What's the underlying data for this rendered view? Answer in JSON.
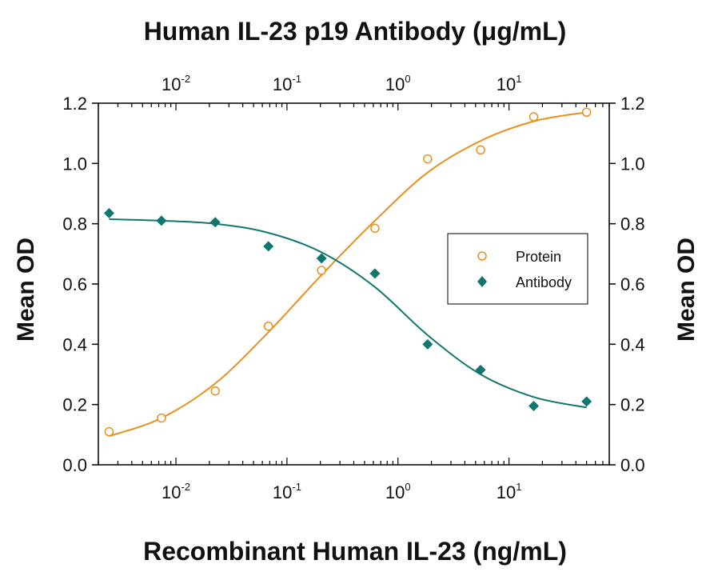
{
  "chart_data": {
    "type": "scatter",
    "title_top": "Human IL-23 p19 Antibody (μg/mL)",
    "xlabel": "Recombinant Human IL-23 (ng/mL)",
    "ylabel_left": "Mean OD",
    "ylabel_right": "Mean OD",
    "x_scale": "log",
    "xlim": [
      0.002,
      80
    ],
    "ylim": [
      0,
      1.2
    ],
    "y_ticks": [
      "0.0",
      "0.2",
      "0.4",
      "0.6",
      "0.8",
      "1.0",
      "1.2"
    ],
    "x_tick_labels": [
      {
        "base": "10",
        "exp": "-2",
        "value": 0.01
      },
      {
        "base": "10",
        "exp": "-1",
        "value": 0.1
      },
      {
        "base": "10",
        "exp": "0",
        "value": 1
      },
      {
        "base": "10",
        "exp": "1",
        "value": 10
      }
    ],
    "grid": false,
    "legend_position": "right",
    "series": [
      {
        "name": "Protein",
        "marker": "open-circle",
        "color": "#e8901e",
        "x": [
          0.0025,
          0.0074,
          0.0226,
          0.068,
          0.205,
          0.62,
          1.85,
          5.55,
          16.7,
          50
        ],
        "y": [
          0.11,
          0.155,
          0.245,
          0.46,
          0.645,
          0.785,
          1.015,
          1.045,
          1.155,
          1.17
        ],
        "fit_curve": [
          [
            0.0025,
            0.095
          ],
          [
            0.0074,
            0.155
          ],
          [
            0.0226,
            0.27
          ],
          [
            0.068,
            0.44
          ],
          [
            0.205,
            0.63
          ],
          [
            0.62,
            0.81
          ],
          [
            1.85,
            0.97
          ],
          [
            5.55,
            1.075
          ],
          [
            16.7,
            1.14
          ],
          [
            50,
            1.17
          ]
        ]
      },
      {
        "name": "Antibody",
        "marker": "filled-diamond",
        "color": "#11766e",
        "x": [
          0.0025,
          0.0074,
          0.0226,
          0.068,
          0.205,
          0.62,
          1.85,
          5.55,
          16.7,
          50
        ],
        "y": [
          0.835,
          0.81,
          0.805,
          0.725,
          0.685,
          0.635,
          0.4,
          0.315,
          0.195,
          0.21
        ],
        "fit_curve": [
          [
            0.0025,
            0.815
          ],
          [
            0.0074,
            0.81
          ],
          [
            0.0226,
            0.8
          ],
          [
            0.068,
            0.77
          ],
          [
            0.205,
            0.705
          ],
          [
            0.62,
            0.59
          ],
          [
            1.85,
            0.43
          ],
          [
            5.55,
            0.3
          ],
          [
            16.7,
            0.225
          ],
          [
            50,
            0.19
          ]
        ]
      }
    ]
  }
}
